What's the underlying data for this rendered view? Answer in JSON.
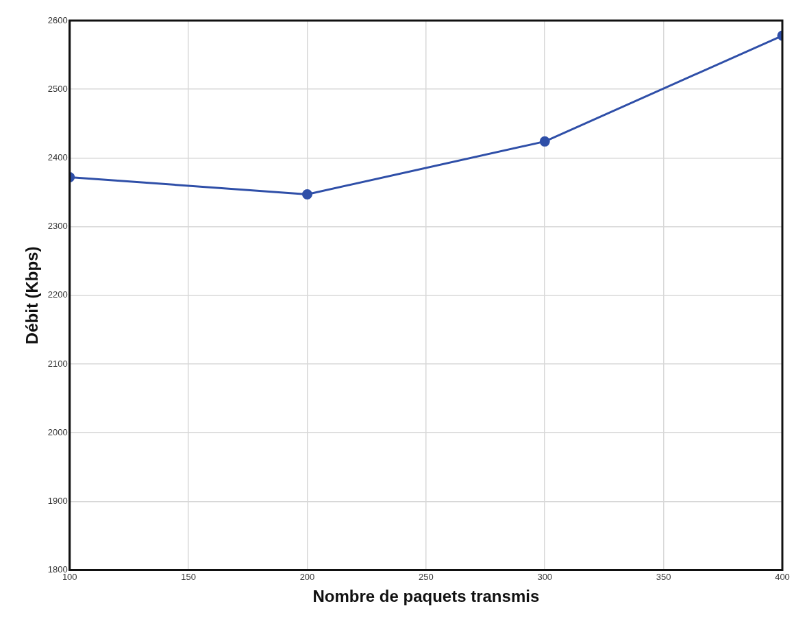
{
  "chart_data": {
    "type": "line",
    "xlabel": "Nombre de paquets transmis",
    "ylabel": "Débit (Kbps)",
    "x": [
      100,
      200,
      300,
      400
    ],
    "series": [
      {
        "color": "#2f4fa8",
        "values": [
          2372,
          2347,
          2424,
          2578
        ]
      }
    ],
    "xlim": [
      100,
      400
    ],
    "xticks": [
      100,
      150,
      200,
      250,
      300,
      350,
      400
    ],
    "ylim": [
      1800,
      2600
    ],
    "yticks": [
      1800,
      1900,
      2000,
      2100,
      2200,
      2300,
      2400,
      2500,
      2600
    ],
    "grid": true,
    "marker": "circle",
    "line_style": "solid",
    "legend": false
  }
}
